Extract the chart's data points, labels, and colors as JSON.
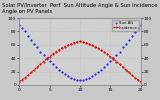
{
  "title": "Solar PV/Inverter  Perf  Sun Altitude Angle & Sun Incidence Angle on PV Panels",
  "background_color": "#c8c8c8",
  "plot_bg_color": "#d0d0d0",
  "grid_color": "#aaaaaa",
  "x_values": [
    0,
    0.5,
    1,
    1.5,
    2,
    2.5,
    3,
    3.5,
    4,
    4.5,
    5,
    5.5,
    6,
    6.5,
    7,
    7.5,
    8,
    8.5,
    9,
    9.5,
    10,
    10.5,
    11,
    11.5,
    12,
    12.5,
    13,
    13.5,
    14,
    14.5,
    15,
    15.5,
    16,
    16.5,
    17,
    17.5,
    18,
    18.5,
    19,
    19.5,
    20
  ],
  "blue_values": [
    90,
    85,
    80,
    73,
    67,
    61,
    56,
    50,
    45,
    41,
    36,
    32,
    27,
    23,
    19,
    16,
    13,
    11,
    9,
    8,
    8,
    8,
    9,
    11,
    13,
    16,
    19,
    23,
    27,
    32,
    36,
    41,
    45,
    50,
    56,
    61,
    67,
    73,
    79,
    85,
    90
  ],
  "red_values": [
    5,
    8,
    11,
    15,
    19,
    23,
    27,
    31,
    35,
    39,
    42,
    46,
    49,
    52,
    55,
    57,
    59,
    61,
    63,
    64,
    65,
    64,
    63,
    61,
    59,
    57,
    55,
    52,
    49,
    46,
    42,
    39,
    35,
    31,
    27,
    23,
    19,
    15,
    11,
    8,
    5
  ],
  "blue_color": "#0000ee",
  "red_color": "#dd0000",
  "xlim": [
    0,
    20
  ],
  "ylim": [
    0,
    100
  ],
  "x_tick_interval": 5,
  "y_tick_interval": 20,
  "legend_blue": "Sun Alt",
  "legend_red": "Incidence",
  "title_fontsize": 3.8,
  "tick_fontsize": 3.2,
  "label_fontsize": 3.2,
  "line_width": 0.8,
  "marker_size": 1.0
}
